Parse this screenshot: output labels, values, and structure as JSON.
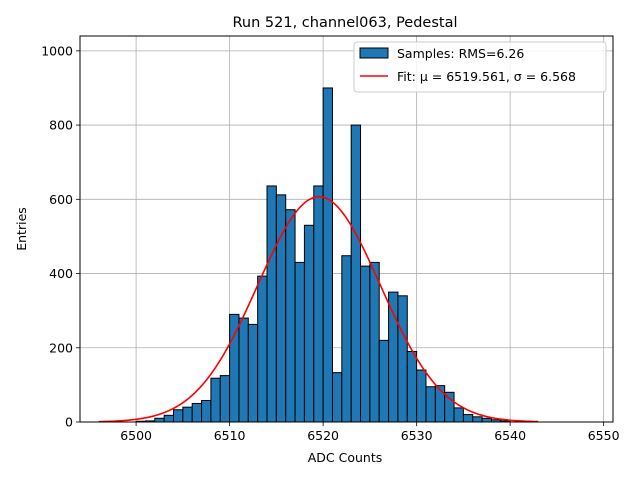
{
  "chart_data": {
    "type": "bar",
    "title": "Run 521, channel063, Pedestal",
    "xlabel": "ADC Counts",
    "ylabel": "Entries",
    "xlim": [
      6494,
      6551
    ],
    "ylim": [
      0,
      1040
    ],
    "xticks": [
      6500,
      6510,
      6520,
      6530,
      6540,
      6550
    ],
    "yticks": [
      0,
      200,
      400,
      600,
      800,
      1000
    ],
    "grid": true,
    "legend_position": "top-right",
    "bin_width": 1,
    "bins": [
      {
        "x": 6500,
        "y": 2
      },
      {
        "x": 6501,
        "y": 3
      },
      {
        "x": 6502,
        "y": 10
      },
      {
        "x": 6503,
        "y": 18
      },
      {
        "x": 6504,
        "y": 33
      },
      {
        "x": 6505,
        "y": 40
      },
      {
        "x": 6506,
        "y": 50
      },
      {
        "x": 6507,
        "y": 58
      },
      {
        "x": 6508,
        "y": 118
      },
      {
        "x": 6509,
        "y": 125
      },
      {
        "x": 6510,
        "y": 290
      },
      {
        "x": 6511,
        "y": 280
      },
      {
        "x": 6512,
        "y": 263
      },
      {
        "x": 6513,
        "y": 393
      },
      {
        "x": 6514,
        "y": 636
      },
      {
        "x": 6515,
        "y": 612
      },
      {
        "x": 6516,
        "y": 572
      },
      {
        "x": 6517,
        "y": 430
      },
      {
        "x": 6518,
        "y": 530
      },
      {
        "x": 6519,
        "y": 636
      },
      {
        "x": 6520,
        "y": 900
      },
      {
        "x": 6521,
        "y": 133
      },
      {
        "x": 6522,
        "y": 448
      },
      {
        "x": 6523,
        "y": 800
      },
      {
        "x": 6524,
        "y": 420
      },
      {
        "x": 6525,
        "y": 430
      },
      {
        "x": 6526,
        "y": 220
      },
      {
        "x": 6527,
        "y": 350
      },
      {
        "x": 6528,
        "y": 340
      },
      {
        "x": 6529,
        "y": 190
      },
      {
        "x": 6530,
        "y": 140
      },
      {
        "x": 6531,
        "y": 95
      },
      {
        "x": 6532,
        "y": 98
      },
      {
        "x": 6533,
        "y": 80
      },
      {
        "x": 6534,
        "y": 38
      },
      {
        "x": 6535,
        "y": 20
      },
      {
        "x": 6536,
        "y": 14
      },
      {
        "x": 6537,
        "y": 10
      },
      {
        "x": 6538,
        "y": 6
      },
      {
        "x": 6539,
        "y": 3
      }
    ],
    "series": [
      {
        "name": "Samples: RMS=6.26",
        "kind": "histogram",
        "color": "#1f77b4",
        "edge_color": "#000000"
      },
      {
        "name": "Fit: μ = 6519.561, σ = 6.568",
        "kind": "gaussian",
        "color": "#ff0000",
        "mu": 6519.561,
        "sigma": 6.568,
        "amplitude": 607,
        "x_range": [
          6496,
          6543
        ]
      }
    ]
  }
}
